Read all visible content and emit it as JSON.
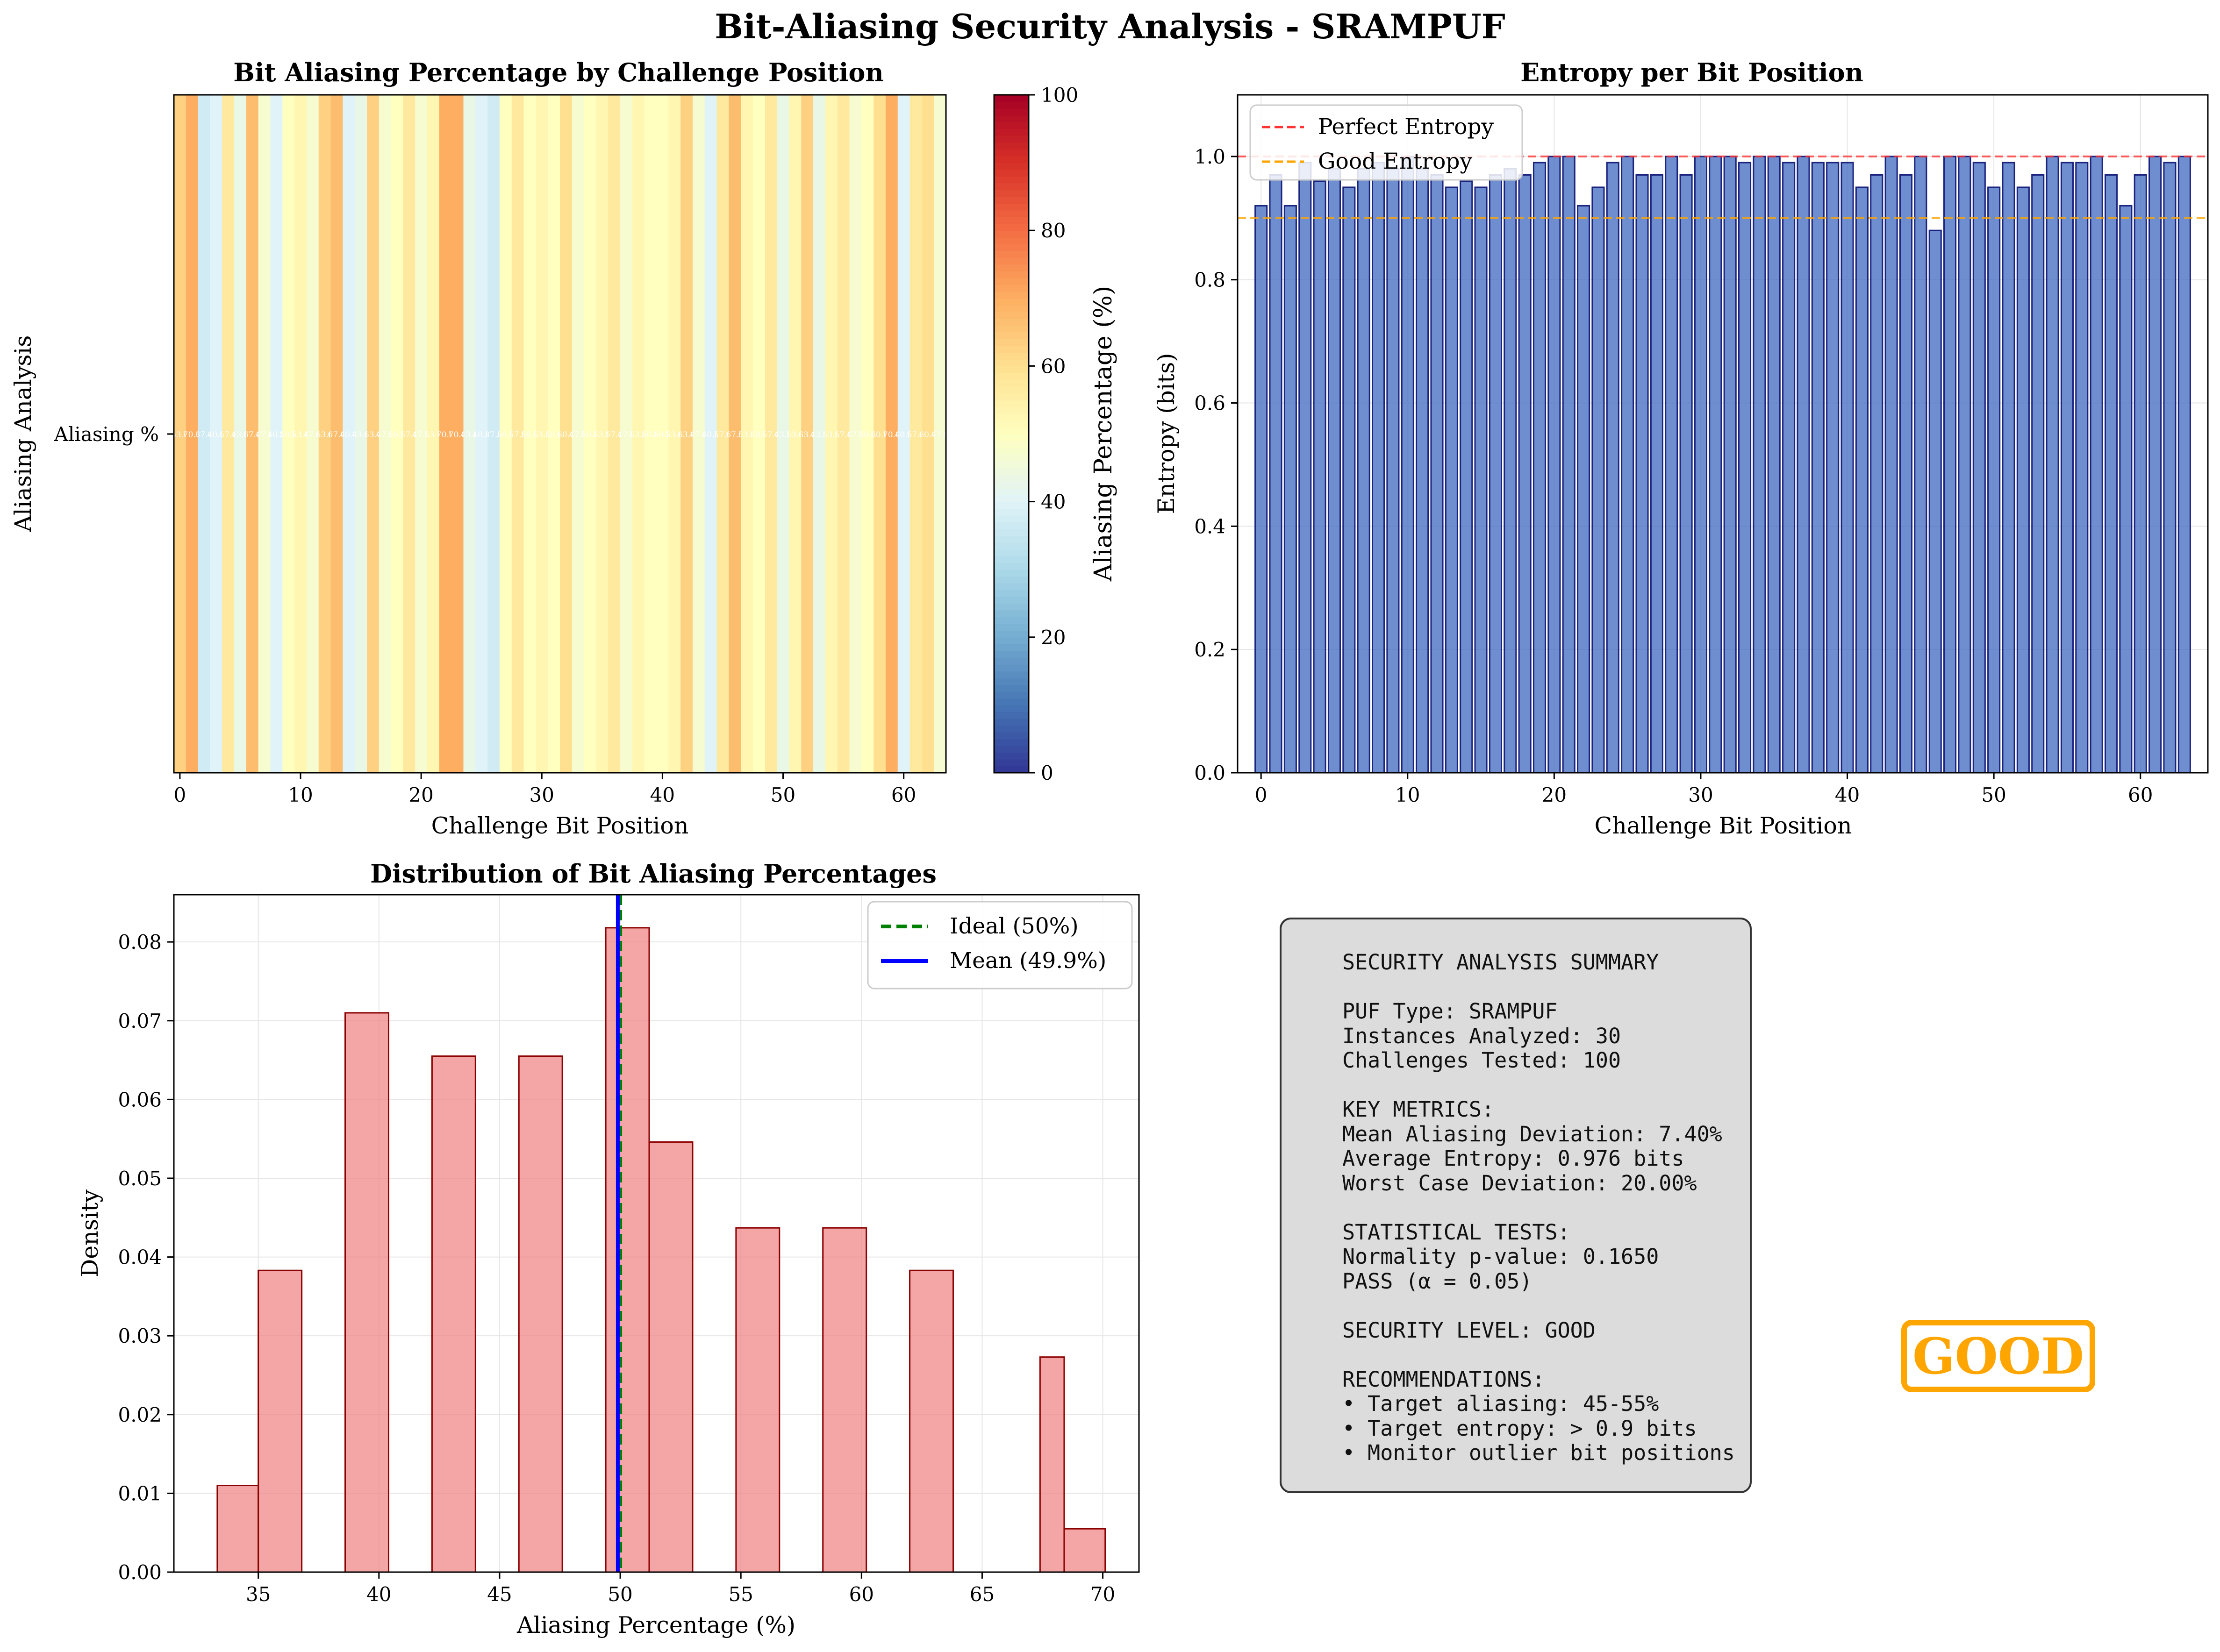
{
  "figure_title": "Bit-Aliasing Security Analysis - SRAMPUF",
  "summary": {
    "text": "SECURITY ANALYSIS SUMMARY\n\nPUF Type: SRAMPUF\nInstances Analyzed: 30\nChallenges Tested: 100\n\nKEY METRICS:\nMean Aliasing Deviation: 7.40%\nAverage Entropy: 0.976 bits\nWorst Case Deviation: 20.00%\n\nSTATISTICAL TESTS:\nNormality p-value: 0.1650\nPASS (α = 0.05)\n\nSECURITY LEVEL: GOOD\n\nRECOMMENDATIONS:\n• Target aliasing: 45-55%\n• Target entropy: > 0.9 bits\n• Monitor outlier bit positions",
    "security_level_badge": "GOOD",
    "badge_color": "#FFA500"
  },
  "chart_data": [
    {
      "type": "heatmap",
      "title": "Bit Aliasing Percentage by Challenge Position",
      "xlabel": "Challenge Bit Position",
      "ylabel": "Aliasing Analysis",
      "row_labels": [
        "Aliasing %"
      ],
      "xticks": [
        0,
        10,
        20,
        30,
        40,
        50,
        60
      ],
      "colormap": "RdYlBu_r",
      "clim": [
        0,
        100
      ],
      "colorbar_label": "Aliasing Percentage (%)",
      "colorbar_ticks": [
        0,
        20,
        40,
        60,
        80,
        100
      ],
      "values": [
        63,
        70,
        37,
        40,
        57,
        43,
        67,
        47,
        40,
        50,
        53,
        47,
        63,
        67,
        40,
        43,
        63,
        47,
        50,
        57,
        47,
        53,
        70,
        70,
        43,
        40,
        37,
        50,
        57,
        50,
        53,
        50,
        60,
        47,
        50,
        53,
        57,
        47,
        53,
        50,
        50,
        53,
        63,
        47,
        40,
        57,
        67,
        53,
        50,
        57,
        43,
        53,
        63,
        43,
        53,
        57,
        47,
        50,
        60,
        70,
        40,
        57,
        60,
        47
      ]
    },
    {
      "type": "bar",
      "title": "Entropy per Bit Position",
      "xlabel": "Challenge Bit Position",
      "ylabel": "Entropy (bits)",
      "xticks": [
        0,
        10,
        20,
        30,
        40,
        50,
        60
      ],
      "ylim": [
        0,
        1.1
      ],
      "yticks": [
        0.0,
        0.2,
        0.4,
        0.6,
        0.8,
        1.0
      ],
      "bar_color": "#4a72c4",
      "reference_lines": [
        {
          "name": "Perfect Entropy",
          "value": 1.0,
          "color": "#ff3333"
        },
        {
          "name": "Good Entropy",
          "value": 0.9,
          "color": "#ffa500"
        }
      ],
      "legend_position": "upper-left",
      "categories": [
        0,
        1,
        2,
        3,
        4,
        5,
        6,
        7,
        8,
        9,
        10,
        11,
        12,
        13,
        14,
        15,
        16,
        17,
        18,
        19,
        20,
        21,
        22,
        23,
        24,
        25,
        26,
        27,
        28,
        29,
        30,
        31,
        32,
        33,
        34,
        35,
        36,
        37,
        38,
        39,
        40,
        41,
        42,
        43,
        44,
        45,
        46,
        47,
        48,
        49,
        50,
        51,
        52,
        53,
        54,
        55,
        56,
        57,
        58,
        59,
        60,
        61,
        62,
        63
      ],
      "values": [
        0.92,
        0.97,
        0.92,
        0.99,
        0.96,
        0.98,
        0.95,
        0.98,
        0.99,
        0.98,
        1.0,
        0.98,
        0.97,
        0.95,
        0.96,
        0.95,
        0.97,
        0.98,
        0.97,
        0.99,
        1.0,
        1.0,
        0.92,
        0.95,
        0.99,
        1.0,
        0.97,
        0.97,
        1.0,
        0.97,
        1.0,
        1.0,
        1.0,
        0.99,
        1.0,
        1.0,
        0.99,
        1.0,
        0.99,
        0.99,
        0.99,
        0.95,
        0.97,
        1.0,
        0.97,
        1.0,
        0.88,
        1.0,
        1.0,
        0.99,
        0.95,
        0.99,
        0.95,
        0.97,
        1.0,
        0.99,
        0.99,
        1.0,
        0.97,
        0.92,
        0.97,
        1.0,
        0.99,
        1.0
      ]
    },
    {
      "type": "bar",
      "subtype": "histogram",
      "title": "Distribution of Bit Aliasing Percentages",
      "xlabel": "Aliasing Percentage (%)",
      "ylabel": "Density",
      "xlim": [
        31.5,
        71.5
      ],
      "ylim": [
        0,
        0.086
      ],
      "xticks": [
        35,
        40,
        45,
        50,
        55,
        60,
        65,
        70
      ],
      "yticks": [
        0.0,
        0.01,
        0.02,
        0.03,
        0.04,
        0.05,
        0.06,
        0.07,
        0.08
      ],
      "bar_color": "#f08080",
      "bins": [
        {
          "x0": 33.3,
          "x1": 35.0,
          "density": 0.011
        },
        {
          "x0": 35.0,
          "x1": 36.8,
          "density": 0.0383
        },
        {
          "x0": 36.8,
          "x1": 38.6,
          "density": 0.0
        },
        {
          "x0": 38.6,
          "x1": 40.4,
          "density": 0.071
        },
        {
          "x0": 40.4,
          "x1": 42.2,
          "density": 0.0
        },
        {
          "x0": 42.2,
          "x1": 44.0,
          "density": 0.0655
        },
        {
          "x0": 44.0,
          "x1": 45.8,
          "density": 0.0
        },
        {
          "x0": 45.8,
          "x1": 47.6,
          "density": 0.0655
        },
        {
          "x0": 47.6,
          "x1": 49.4,
          "density": 0.0
        },
        {
          "x0": 49.4,
          "x1": 51.2,
          "density": 0.0818
        },
        {
          "x0": 51.2,
          "x1": 53.0,
          "density": 0.0546
        },
        {
          "x0": 53.0,
          "x1": 54.8,
          "density": 0.0
        },
        {
          "x0": 54.8,
          "x1": 56.6,
          "density": 0.0437
        },
        {
          "x0": 56.6,
          "x1": 58.4,
          "density": 0.0
        },
        {
          "x0": 58.4,
          "x1": 60.2,
          "density": 0.0437
        },
        {
          "x0": 60.2,
          "x1": 62.0,
          "density": 0.0
        },
        {
          "x0": 62.0,
          "x1": 63.8,
          "density": 0.0383
        },
        {
          "x0": 63.8,
          "x1": 65.6,
          "density": 0.0
        },
        {
          "x0": 65.6,
          "x1": 67.4,
          "density": 0.0
        },
        {
          "x0": 67.4,
          "x1": 68.4,
          "density": 0.0273
        },
        {
          "x0": 68.4,
          "x1": 70.1,
          "density": 0.0055
        }
      ],
      "reference_lines": [
        {
          "name": "Ideal (50%)",
          "value": 50,
          "color": "#008000",
          "style": "dashed"
        },
        {
          "name": "Mean (49.9%)",
          "value": 49.9,
          "color": "#0000ff",
          "style": "solid"
        }
      ],
      "legend_position": "upper-right"
    }
  ]
}
